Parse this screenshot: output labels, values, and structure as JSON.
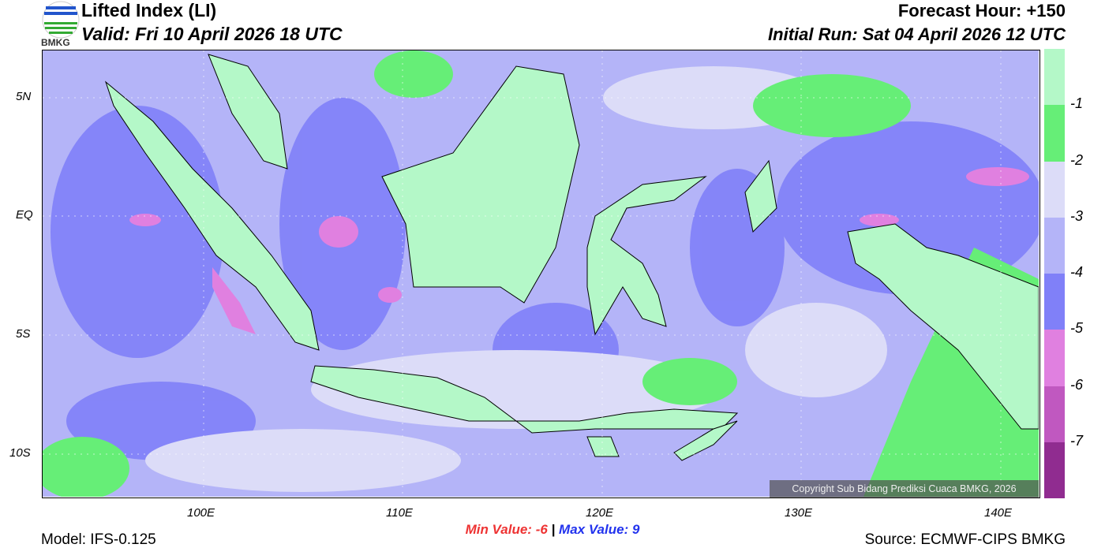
{
  "header": {
    "title": "Lifted Index (LI)",
    "valid": "Valid: Fri 10 April 2026 18 UTC",
    "forecast_hour": "Forecast Hour: +150",
    "initial_run": "Initial Run: Sat 04 April 2026 12 UTC",
    "logo_text": "BMKG"
  },
  "axes": {
    "lat": [
      "5N",
      "EQ",
      "5S",
      "10S"
    ],
    "lon": [
      "100E",
      "110E",
      "120E",
      "130E",
      "140E"
    ]
  },
  "colorbar": {
    "colors": [
      "#b4f8c8",
      "#66ee77",
      "#dcdcf8",
      "#b4b4f8",
      "#8080f8",
      "#e080e0",
      "#c058c0",
      "#902c90"
    ],
    "labels": [
      "-1",
      "-2",
      "-3",
      "-4",
      "-5",
      "-6",
      "-7"
    ]
  },
  "copyright": "Copyright Sub Bidang Prediksi Cuaca BMKG, 2026",
  "stats": {
    "min_label": "Min Value:",
    "min": "-6",
    "sep": "|",
    "max_label": "Max Value:",
    "max": "9",
    "min_color": "#ee3333",
    "max_color": "#2233ee"
  },
  "footer": {
    "model": "Model: IFS-0.125",
    "source": "Source: ECMWF-CIPS BMKG"
  }
}
